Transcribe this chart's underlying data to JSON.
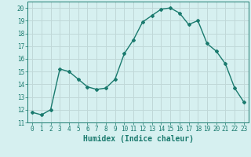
{
  "x": [
    0,
    1,
    2,
    3,
    4,
    5,
    6,
    7,
    8,
    9,
    10,
    11,
    12,
    13,
    14,
    15,
    16,
    17,
    18,
    19,
    20,
    21,
    22,
    23
  ],
  "y": [
    11.8,
    11.6,
    12.0,
    15.2,
    15.0,
    14.4,
    13.8,
    13.6,
    13.7,
    14.4,
    16.4,
    17.5,
    18.9,
    19.4,
    19.9,
    20.0,
    19.6,
    18.7,
    19.0,
    17.2,
    16.6,
    15.6,
    13.7,
    12.6
  ],
  "line_color": "#1a7a6e",
  "marker": "D",
  "marker_size": 2,
  "bg_color": "#d6f0f0",
  "grid_color": "#c0d8d8",
  "xlabel": "Humidex (Indice chaleur)",
  "ylim": [
    11,
    20.5
  ],
  "yticks": [
    11,
    12,
    13,
    14,
    15,
    16,
    17,
    18,
    19,
    20
  ],
  "xticks": [
    0,
    1,
    2,
    3,
    4,
    5,
    6,
    7,
    8,
    9,
    10,
    11,
    12,
    13,
    14,
    15,
    16,
    17,
    18,
    19,
    20,
    21,
    22,
    23
  ],
  "tick_fontsize": 5.5,
  "xlabel_fontsize": 7.0,
  "line_width": 1.0
}
